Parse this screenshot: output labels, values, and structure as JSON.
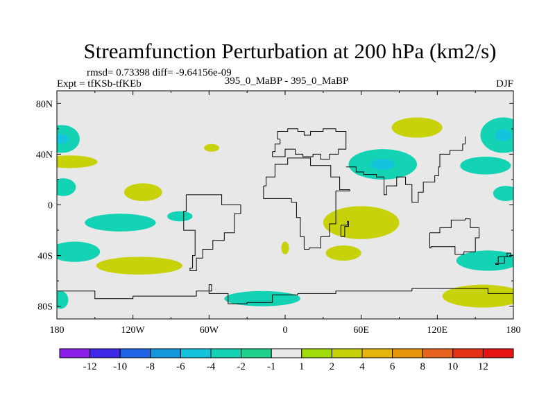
{
  "chart_data": {
    "type": "filled-contour-map",
    "title": "Streamfunction Perturbation at 200 hPa (km2/s)",
    "info_line": "rmsd= 0.73398 diff= -9.64156e-09",
    "left_label": "Expt = tfKSb-tfKEb",
    "center_label": "395_0_MaBP - 395_0_MaBP",
    "right_label": "DJF",
    "x_ticks": [
      {
        "lon": -180,
        "label": "180"
      },
      {
        "lon": -120,
        "label": "120W"
      },
      {
        "lon": -60,
        "label": "60W"
      },
      {
        "lon": 0,
        "label": "0"
      },
      {
        "lon": 60,
        "label": "60E"
      },
      {
        "lon": 120,
        "label": "120E"
      },
      {
        "lon": 180,
        "label": "180"
      }
    ],
    "y_ticks": [
      {
        "lat": 80,
        "label": "80N"
      },
      {
        "lat": 40,
        "label": "40N"
      },
      {
        "lat": 0,
        "label": "0"
      },
      {
        "lat": -40,
        "label": "40S"
      },
      {
        "lat": -80,
        "label": "80S"
      }
    ],
    "xlim": [
      -180,
      180
    ],
    "ylim": [
      -90,
      90
    ],
    "colorbar": {
      "labels": [
        "-12",
        "-10",
        "-8",
        "-6",
        "-4",
        "-2",
        "-1",
        "1",
        "2",
        "4",
        "6",
        "8",
        "10",
        "12"
      ],
      "colors": [
        "#8a1ee6",
        "#3c28e6",
        "#1e64e6",
        "#1496dc",
        "#14c3dc",
        "#14d2b4",
        "#1ed28c",
        "#e8e8e8",
        "#a0dc0a",
        "#c8d20a",
        "#e6b40a",
        "#e6960a",
        "#e6641e",
        "#e63214",
        "#e61414"
      ]
    },
    "anomalies": [
      {
        "name": "cyan-w-north",
        "lon": -176,
        "lat": 52,
        "rx": 14,
        "ry": 11,
        "level": "-2",
        "core": "-4"
      },
      {
        "name": "green-w-north",
        "lon": -170,
        "lat": 34,
        "rx": 22,
        "ry": 5,
        "level": "2"
      },
      {
        "name": "cyan-w-eq",
        "lon": -175,
        "lat": 14,
        "rx": 10,
        "ry": 7,
        "level": "-2"
      },
      {
        "name": "green-pac-tr",
        "lon": -112,
        "lat": 10,
        "rx": 15,
        "ry": 7,
        "level": "2"
      },
      {
        "name": "green-small-n",
        "lon": -58,
        "lat": 45,
        "rx": 6,
        "ry": 3,
        "level": "2"
      },
      {
        "name": "cyan-pac-s",
        "lon": -130,
        "lat": -14,
        "rx": 28,
        "ry": 7,
        "level": "-2"
      },
      {
        "name": "cyan-sm-s",
        "lon": -83,
        "lat": -9,
        "rx": 10,
        "ry": 4,
        "level": "-2"
      },
      {
        "name": "cyan-sw",
        "lon": -166,
        "lat": -37,
        "rx": 20,
        "ry": 8,
        "level": "-2"
      },
      {
        "name": "green-s-pac",
        "lon": -115,
        "lat": -48,
        "rx": 34,
        "ry": 7,
        "level": "2"
      },
      {
        "name": "cyan-far-sw",
        "lon": -177,
        "lat": -75,
        "rx": 6,
        "ry": 7,
        "level": "-2"
      },
      {
        "name": "cyan-s-atl",
        "lon": -18,
        "lat": -74,
        "rx": 30,
        "ry": 6,
        "level": "-2"
      },
      {
        "name": "cyan-n-atl",
        "lon": 77,
        "lat": 32,
        "rx": 27,
        "ry": 12,
        "level": "-2",
        "core": "-4"
      },
      {
        "name": "green-n-asia",
        "lon": 104,
        "lat": 61,
        "rx": 20,
        "ry": 8,
        "level": "2"
      },
      {
        "name": "cyan-ne",
        "lon": 172,
        "lat": 55,
        "rx": 18,
        "ry": 14,
        "level": "-2",
        "core": "-4"
      },
      {
        "name": "cyan-pac-e",
        "lon": 158,
        "lat": 31,
        "rx": 20,
        "ry": 7,
        "level": "-2"
      },
      {
        "name": "cyan-e-eq",
        "lon": 174,
        "lat": 9,
        "rx": 10,
        "ry": 6,
        "level": "-2"
      },
      {
        "name": "green-ind",
        "lon": 60,
        "lat": -14,
        "rx": 30,
        "ry": 13,
        "level": "2"
      },
      {
        "name": "green-sm-e",
        "lon": 0,
        "lat": -34,
        "rx": 3,
        "ry": 5,
        "level": "2"
      },
      {
        "name": "green-s-ind",
        "lon": 46,
        "lat": -38,
        "rx": 14,
        "ry": 6,
        "level": "2"
      },
      {
        "name": "cyan-se",
        "lon": 160,
        "lat": -44,
        "rx": 25,
        "ry": 8,
        "level": "-2"
      },
      {
        "name": "green-se",
        "lon": 156,
        "lat": -72,
        "rx": 32,
        "ry": 9,
        "level": "2"
      }
    ],
    "coastlines": [
      {
        "name": "europe-coast",
        "points": [
          [
            -10,
            42
          ],
          [
            -8,
            48
          ],
          [
            -4,
            52
          ],
          [
            -6,
            58
          ],
          [
            2,
            60
          ],
          [
            10,
            58
          ],
          [
            15,
            55
          ],
          [
            20,
            58
          ],
          [
            30,
            60
          ],
          [
            40,
            58
          ],
          [
            48,
            44
          ],
          [
            42,
            40
          ],
          [
            35,
            36
          ],
          [
            28,
            40
          ],
          [
            22,
            38
          ],
          [
            14,
            40
          ],
          [
            8,
            44
          ],
          [
            0,
            38
          ],
          [
            -10,
            42
          ]
        ]
      },
      {
        "name": "africa-coast",
        "points": [
          [
            -17,
            15
          ],
          [
            -15,
            22
          ],
          [
            -8,
            32
          ],
          [
            2,
            37
          ],
          [
            10,
            37
          ],
          [
            20,
            31
          ],
          [
            32,
            31
          ],
          [
            36,
            22
          ],
          [
            43,
            12
          ],
          [
            51,
            11
          ],
          [
            40,
            -2
          ],
          [
            40,
            -15
          ],
          [
            35,
            -25
          ],
          [
            28,
            -34
          ],
          [
            19,
            -35
          ],
          [
            15,
            -25
          ],
          [
            12,
            -10
          ],
          [
            9,
            2
          ],
          [
            5,
            5
          ],
          [
            -8,
            5
          ],
          [
            -17,
            15
          ]
        ]
      },
      {
        "name": "samerica-coast",
        "points": [
          [
            -78,
            8
          ],
          [
            -60,
            8
          ],
          [
            -50,
            0
          ],
          [
            -35,
            -7
          ],
          [
            -40,
            -22
          ],
          [
            -48,
            -28
          ],
          [
            -57,
            -35
          ],
          [
            -65,
            -42
          ],
          [
            -70,
            -52
          ],
          [
            -75,
            -50
          ],
          [
            -73,
            -40
          ],
          [
            -71,
            -20
          ],
          [
            -80,
            -5
          ],
          [
            -78,
            8
          ]
        ]
      },
      {
        "name": "asia-coast",
        "points": [
          [
            48,
            30
          ],
          [
            56,
            26
          ],
          [
            62,
            24
          ],
          [
            72,
            22
          ],
          [
            78,
            8
          ],
          [
            80,
            15
          ],
          [
            88,
            22
          ],
          [
            95,
            16
          ],
          [
            100,
            2
          ],
          [
            105,
            10
          ],
          [
            109,
            18
          ],
          [
            118,
            23
          ],
          [
            121,
            30
          ],
          [
            122,
            40
          ],
          [
            130,
            43
          ],
          [
            140,
            48
          ],
          [
            142,
            54
          ]
        ]
      },
      {
        "name": "australia-coast",
        "points": [
          [
            114,
            -22
          ],
          [
            122,
            -18
          ],
          [
            131,
            -12
          ],
          [
            137,
            -12
          ],
          [
            142,
            -11
          ],
          [
            146,
            -18
          ],
          [
            153,
            -26
          ],
          [
            150,
            -37
          ],
          [
            141,
            -39
          ],
          [
            134,
            -33
          ],
          [
            125,
            -33
          ],
          [
            115,
            -34
          ],
          [
            114,
            -22
          ]
        ]
      },
      {
        "name": "antarctica-coast",
        "points": [
          [
            -180,
            -68
          ],
          [
            -150,
            -74
          ],
          [
            -120,
            -72
          ],
          [
            -95,
            -72
          ],
          [
            -70,
            -68
          ],
          [
            -58,
            -63
          ],
          [
            -60,
            -70
          ],
          [
            -45,
            -78
          ],
          [
            -30,
            -77
          ],
          [
            -10,
            -71
          ],
          [
            10,
            -70
          ],
          [
            40,
            -68
          ],
          [
            70,
            -68
          ],
          [
            100,
            -66
          ],
          [
            130,
            -66
          ],
          [
            160,
            -70
          ],
          [
            180,
            -70
          ]
        ]
      },
      {
        "name": "madagascar",
        "points": [
          [
            44,
            -16
          ],
          [
            49,
            -13
          ],
          [
            50,
            -17
          ],
          [
            47,
            -25
          ],
          [
            44,
            -22
          ],
          [
            44,
            -16
          ]
        ]
      },
      {
        "name": "new-zealand",
        "points": [
          [
            166,
            -46
          ],
          [
            173,
            -41
          ],
          [
            178,
            -38
          ],
          [
            175,
            -41
          ],
          [
            168,
            -47
          ],
          [
            166,
            -46
          ]
        ]
      }
    ]
  }
}
